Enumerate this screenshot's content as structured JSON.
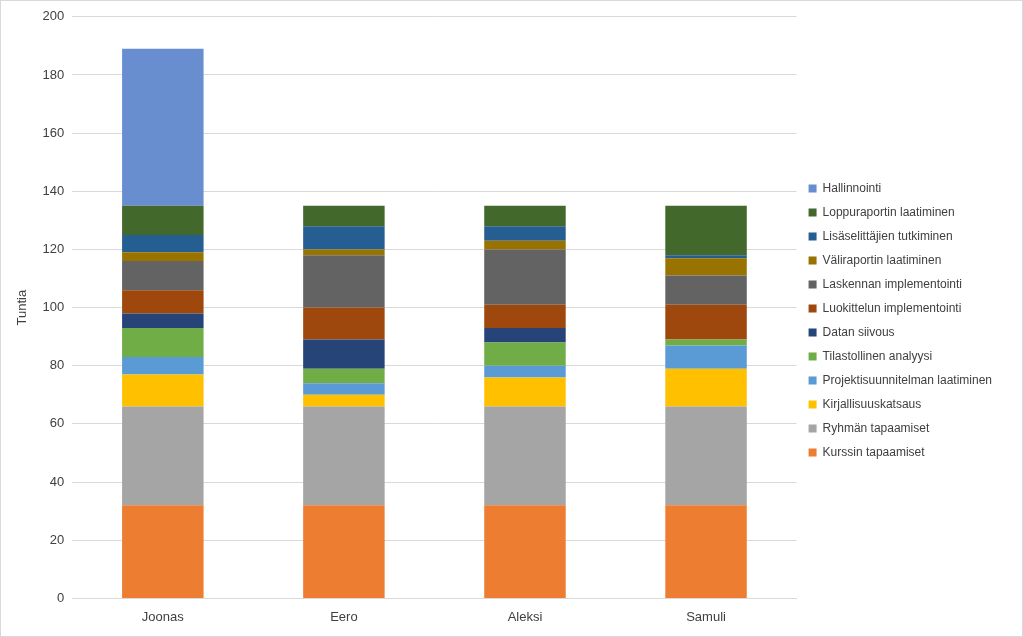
{
  "chart_data": {
    "type": "bar",
    "stacked": true,
    "y_label": "Tuntia",
    "categories": [
      "Joonas",
      "Eero",
      "Aleksi",
      "Samuli"
    ],
    "ylim": [
      0,
      200
    ],
    "yticks": [
      0,
      20,
      40,
      60,
      80,
      100,
      120,
      140,
      160,
      180,
      200
    ],
    "grid": true,
    "legend": "right",
    "series": [
      {
        "name": "Kurssin tapaamiset",
        "color": "#ed7d31",
        "values": [
          32,
          32,
          32,
          32
        ]
      },
      {
        "name": "Ryhmän tapaamiset",
        "color": "#a5a5a5",
        "values": [
          34,
          34,
          34,
          34
        ]
      },
      {
        "name": "Kirjallisuuskatsaus",
        "color": "#ffc000",
        "values": [
          11,
          4,
          10,
          13
        ]
      },
      {
        "name": "Projektisuunnitelman laatiminen",
        "color": "#5b9bd5",
        "values": [
          6,
          4,
          4,
          8
        ]
      },
      {
        "name": "Tilastollinen analyysi",
        "color": "#70ad47",
        "values": [
          10,
          5,
          8,
          2
        ]
      },
      {
        "name": "Datan siivous",
        "color": "#264478",
        "values": [
          5,
          10,
          5,
          0
        ]
      },
      {
        "name": "Luokittelun implementointi",
        "color": "#9e480e",
        "values": [
          8,
          11,
          8,
          12
        ]
      },
      {
        "name": "Laskennan implementointi",
        "color": "#636363",
        "values": [
          10,
          18,
          19,
          10
        ]
      },
      {
        "name": "Väliraportin laatiminen",
        "color": "#997300",
        "values": [
          3,
          2,
          3,
          6
        ]
      },
      {
        "name": "Lisäselittäjien tutkiminen",
        "color": "#255e91",
        "values": [
          6,
          8,
          5,
          1
        ]
      },
      {
        "name": "Loppuraportin laatiminen",
        "color": "#43682b",
        "values": [
          10,
          7,
          7,
          17
        ]
      },
      {
        "name": "Hallinnointi",
        "color": "#698ed0",
        "values": [
          54,
          0,
          0,
          0
        ]
      }
    ]
  }
}
